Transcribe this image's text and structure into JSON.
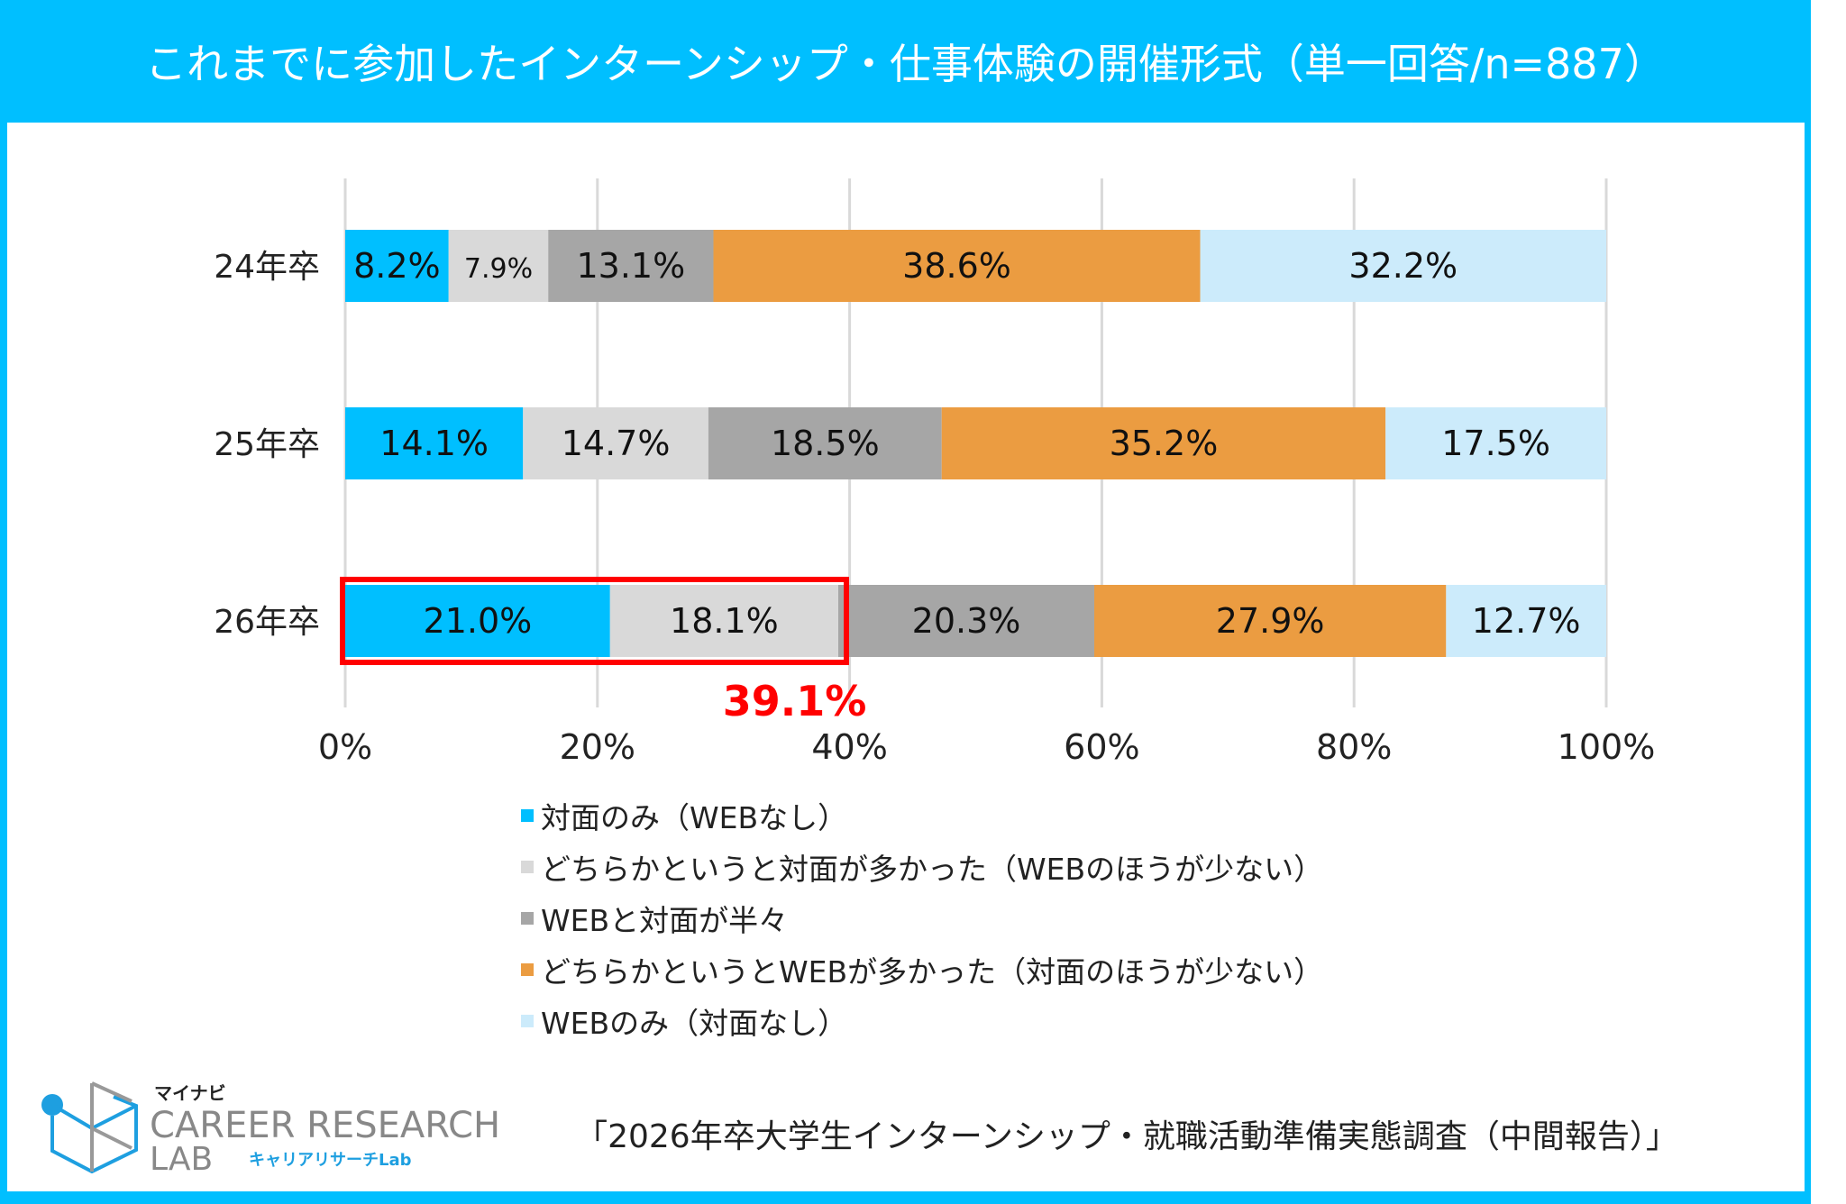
{
  "title": "これまでに参加したインターンシップ・仕事体験の開催形式（単一回答/n=887）",
  "chart_data": {
    "type": "bar",
    "orientation": "horizontal",
    "stacked": true,
    "categories": [
      "24年卒",
      "25年卒",
      "26年卒"
    ],
    "series": [
      {
        "name": "対面のみ（WEBなし）",
        "color": "#00BFFF",
        "values": [
          8.2,
          14.1,
          21.0
        ]
      },
      {
        "name": "どちらかというと対面が多かった（WEBのほうが少ない）",
        "color": "#D9D9D9",
        "values": [
          7.9,
          14.7,
          18.1
        ]
      },
      {
        "name": "WEBと対面が半々",
        "color": "#A6A6A6",
        "values": [
          13.1,
          18.5,
          20.3
        ]
      },
      {
        "name": "どちらかというとWEBが多かった（対面のほうが少ない）",
        "color": "#EB9C41",
        "values": [
          38.6,
          35.2,
          27.9
        ]
      },
      {
        "name": "WEBのみ（対面なし）",
        "color": "#CCEBFB",
        "values": [
          32.2,
          17.5,
          12.7
        ]
      }
    ],
    "data_labels": [
      [
        "8.2%",
        "7.9%",
        "13.1%",
        "38.6%",
        "32.2%"
      ],
      [
        "14.1%",
        "14.7%",
        "18.5%",
        "35.2%",
        "17.5%"
      ],
      [
        "21.0%",
        "18.1%",
        "20.3%",
        "27.9%",
        "12.7%"
      ]
    ],
    "xticks": [
      "0%",
      "20%",
      "40%",
      "60%",
      "80%",
      "100%"
    ],
    "xlim": [
      0,
      100
    ],
    "grid": "vertical",
    "legend_position": "bottom",
    "annotation": {
      "text": "39.1%",
      "color": "#FF0000",
      "category": "26年卒",
      "highlight_series": [
        0,
        1
      ]
    }
  },
  "footer": "「2026年卒大学生インターンシップ・就職活動準備実態調査（中間報告）」",
  "logo": {
    "brand": "マイナビ",
    "line1": "CAREER RESEARCH",
    "line2": "LAB",
    "sub": "キャリアリサーチLab"
  },
  "colors": {
    "frame": "#00BFFF",
    "highlight": "#FF0000"
  }
}
